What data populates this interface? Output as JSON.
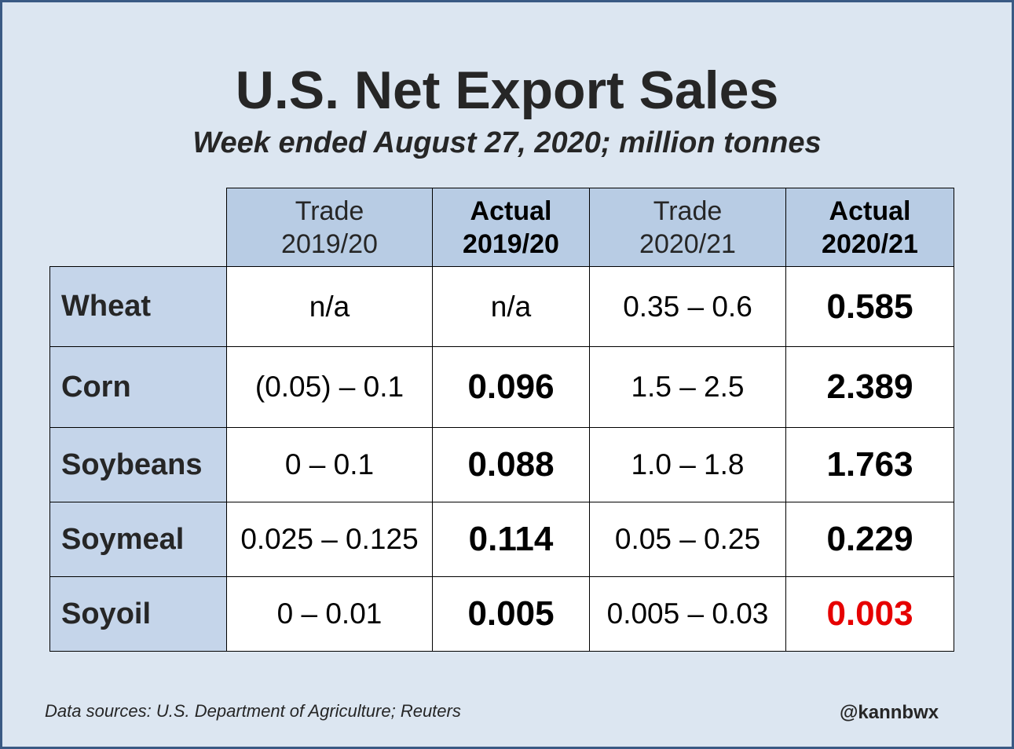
{
  "chart_data": {
    "type": "table",
    "title": "U.S. Net Export Sales",
    "subtitle": "Week ended August 27, 2020; million tonnes",
    "columns": [
      {
        "line1": "Trade",
        "line2": "2019/20"
      },
      {
        "line1": "Actual",
        "line2": "2019/20"
      },
      {
        "line1": "Trade",
        "line2": "2020/21"
      },
      {
        "line1": "Actual",
        "line2": "2020/21"
      }
    ],
    "rows": [
      {
        "label": "Wheat",
        "values": [
          "n/a",
          "n/a",
          "0.35 – 0.6",
          "0.585"
        ]
      },
      {
        "label": "Corn",
        "values": [
          "(0.05) – 0.1",
          "0.096",
          "1.5 – 2.5",
          "2.389"
        ]
      },
      {
        "label": "Soybeans",
        "values": [
          "0 – 0.1",
          "0.088",
          "1.0 – 1.8",
          "1.763"
        ]
      },
      {
        "label": "Soymeal",
        "values": [
          "0.025 – 0.125",
          "0.114",
          "0.05 – 0.25",
          "0.229"
        ]
      },
      {
        "label": "Soyoil",
        "values": [
          "0 – 0.01",
          "0.005",
          "0.005 – 0.03",
          "0.003"
        ]
      }
    ],
    "highlight_color": "#e60000",
    "highlighted_cell": {
      "row": "Soyoil",
      "column": "Actual 2020/21"
    }
  },
  "footer": {
    "source": "Data sources: U.S. Department of Agriculture; Reuters",
    "handle": "@kannbwx"
  }
}
